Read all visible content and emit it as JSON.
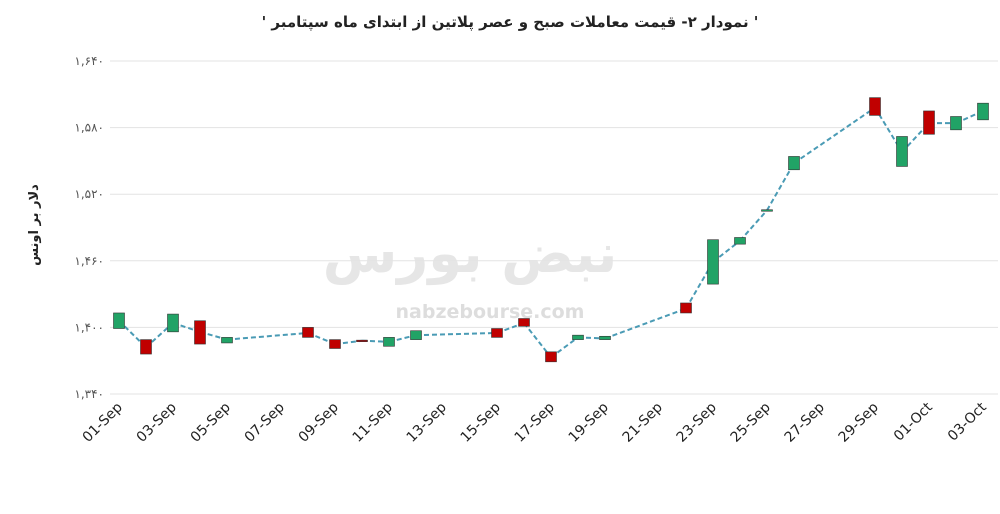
{
  "chart_data": {
    "type": "candlestick",
    "title": "' نمودار ۲- قیمت معاملات صبح و عصر پلاتین از ابتدای ماه سپتامبر '",
    "y_label": "دلار بر اونس",
    "watermark": "نبض بورس",
    "watermark_url": "nabzebourse.com",
    "categories": [
      "01-Sep",
      null,
      "03-Sep",
      null,
      "05-Sep",
      null,
      "07-Sep",
      null,
      "09-Sep",
      null,
      "11-Sep",
      null,
      "13-Sep",
      null,
      "15-Sep",
      null,
      "17-Sep",
      null,
      "19-Sep",
      null,
      "21-Sep",
      null,
      "23-Sep",
      null,
      "25-Sep",
      null,
      "27-Sep",
      null,
      "29-Sep",
      null,
      "01-Oct",
      null,
      "03-Oct"
    ],
    "open": [
      1399,
      1389,
      1396,
      1406,
      1386,
      null,
      null,
      1400,
      1389,
      1388.5,
      1383,
      1389,
      null,
      null,
      1399,
      1408,
      1378,
      1389,
      1389,
      null,
      null,
      1422,
      1439,
      1475,
      1505,
      1542,
      null,
      null,
      1607,
      1545,
      1595,
      1578,
      1587
    ],
    "close": [
      1413,
      1376,
      1412,
      1385,
      1391,
      null,
      null,
      1391,
      1381,
      1388,
      1391,
      1397,
      null,
      null,
      1391,
      1401,
      1369,
      1393,
      1392,
      null,
      null,
      1413,
      1479,
      1481,
      1506,
      1554,
      null,
      null,
      1591,
      1572,
      1574,
      1590,
      1602
    ],
    "line": [
      1406,
      1382,
      1404,
      1396,
      1389,
      null,
      null,
      1395,
      1385,
      1388,
      1387,
      1393,
      null,
      null,
      1395,
      1404,
      1373,
      1391,
      1390,
      null,
      null,
      1417,
      1459,
      1478,
      1505.5,
      1548,
      null,
      null,
      1598,
      1558,
      1584,
      1584,
      1595
    ],
    "up_color": "#21a366",
    "down_color": "#c00000",
    "line_color": "#4a9bb5",
    "ylim": [
      1340,
      1640
    ],
    "yticks": [
      {
        "value": 1340,
        "label": "۱,۳۴۰"
      },
      {
        "value": 1400,
        "label": "۱,۴۰۰"
      },
      {
        "value": 1460,
        "label": "۱,۴۶۰"
      },
      {
        "value": 1520,
        "label": "۱,۵۲۰"
      },
      {
        "value": 1580,
        "label": "۱,۵۸۰"
      },
      {
        "value": 1640,
        "label": "۱,۶۴۰"
      }
    ],
    "grid": true
  }
}
